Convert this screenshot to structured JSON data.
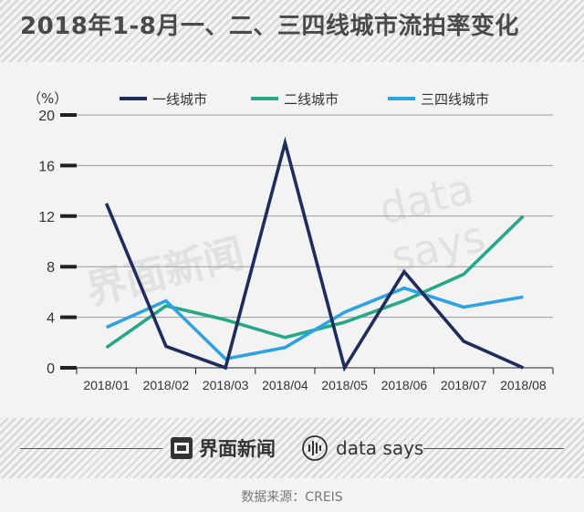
{
  "title": "2018年1-8月一、二、三四线城市流拍率变化",
  "source_note": "数据来源：CREIS",
  "brand": {
    "jiemian": "界面新闻",
    "datasays": "data says"
  },
  "watermarks": {
    "left": "界面新闻",
    "right": "data says"
  },
  "colors": {
    "tier1": "#1f2d5c",
    "tier2": "#26a886",
    "tier3": "#2ea3e3",
    "grid": "#9a9a9a",
    "axis_text": "#333333"
  },
  "chart_data": {
    "type": "line",
    "ylabel": "（%）",
    "ylim": [
      0,
      20
    ],
    "yticks": [
      "0",
      "4",
      "8",
      "12",
      "16",
      "20"
    ],
    "categories": [
      "2018/01",
      "2018/02",
      "2018/03",
      "2018/04",
      "2018/05",
      "2018/06",
      "2018/07",
      "2018/08"
    ],
    "legend_position": "top",
    "grid": true,
    "series": [
      {
        "name": "一线城市",
        "color": "#1f2d5c",
        "values": [
          13.0,
          1.7,
          0.0,
          17.8,
          0.0,
          7.6,
          2.1,
          0.0
        ]
      },
      {
        "name": "二线城市",
        "color": "#26a886",
        "values": [
          1.6,
          4.9,
          3.8,
          2.4,
          3.6,
          5.3,
          7.4,
          12.0
        ]
      },
      {
        "name": "三四线城市",
        "color": "#2ea3e3",
        "values": [
          3.2,
          5.3,
          0.7,
          1.6,
          4.4,
          6.3,
          4.8,
          5.6
        ]
      }
    ]
  }
}
